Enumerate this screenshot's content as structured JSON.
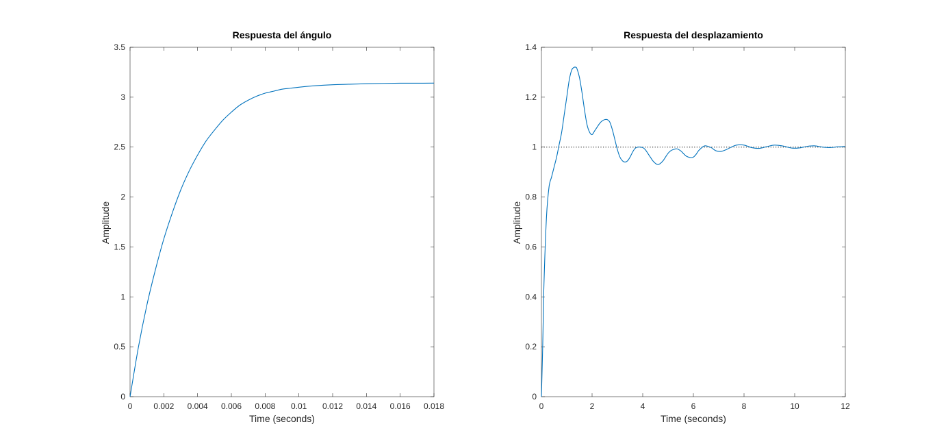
{
  "chart_data": [
    {
      "type": "line",
      "title": "Respuesta del ángulo",
      "xlabel": "Time (seconds)",
      "ylabel": "Amplitude",
      "xlim": [
        0,
        0.018
      ],
      "ylim": [
        0,
        3.5
      ],
      "xticks": [
        "0",
        "0.002",
        "0.004",
        "0.006",
        "0.008",
        "0.01",
        "0.012",
        "0.014",
        "0.016",
        "0.018"
      ],
      "xtick_values": [
        0,
        0.002,
        0.004,
        0.006,
        0.008,
        0.01,
        0.012,
        0.014,
        0.016,
        0.018
      ],
      "yticks": [
        "0",
        "0.5",
        "1",
        "1.5",
        "2",
        "2.5",
        "3",
        "3.5"
      ],
      "ytick_values": [
        0,
        0.5,
        1,
        1.5,
        2,
        2.5,
        3,
        3.5
      ],
      "grid": false,
      "reference_line": null,
      "series": [
        {
          "color": "#0072BD",
          "x": [
            0,
            0.0005,
            0.001,
            0.0015,
            0.002,
            0.0025,
            0.003,
            0.0035,
            0.004,
            0.0045,
            0.005,
            0.0055,
            0.006,
            0.0065,
            0.007,
            0.0075,
            0.008,
            0.0085,
            0.009,
            0.0095,
            0.01,
            0.011,
            0.012,
            0.013,
            0.014,
            0.015,
            0.016,
            0.017,
            0.018
          ],
          "y": [
            0,
            0.5,
            0.92,
            1.27,
            1.58,
            1.84,
            2.07,
            2.26,
            2.42,
            2.56,
            2.67,
            2.77,
            2.85,
            2.92,
            2.97,
            3.01,
            3.04,
            3.06,
            3.08,
            3.09,
            3.1,
            3.115,
            3.125,
            3.13,
            3.135,
            3.138,
            3.14,
            3.14,
            3.141
          ]
        }
      ]
    },
    {
      "type": "line",
      "title": "Respuesta del desplazamiento",
      "xlabel": "Time (seconds)",
      "ylabel": "Amplitude",
      "xlim": [
        0,
        12
      ],
      "ylim": [
        0,
        1.4
      ],
      "xticks": [
        "0",
        "2",
        "4",
        "6",
        "8",
        "10",
        "12"
      ],
      "xtick_values": [
        0,
        2,
        4,
        6,
        8,
        10,
        12
      ],
      "yticks": [
        "0",
        "0.2",
        "0.4",
        "0.6",
        "0.8",
        "1",
        "1.2",
        "1.4"
      ],
      "ytick_values": [
        0,
        0.2,
        0.4,
        0.6,
        0.8,
        1,
        1.2,
        1.4
      ],
      "grid": false,
      "reference_line": {
        "y": 1,
        "style": "dotted",
        "color": "#000000"
      },
      "series": [
        {
          "color": "#0072BD",
          "x": [
            0,
            0.05,
            0.1,
            0.2,
            0.3,
            0.4,
            0.5,
            0.6,
            0.7,
            0.8,
            0.9,
            1.0,
            1.1,
            1.2,
            1.3,
            1.35,
            1.4,
            1.5,
            1.6,
            1.7,
            1.8,
            1.9,
            2.0,
            2.1,
            2.2,
            2.3,
            2.4,
            2.5,
            2.6,
            2.7,
            2.8,
            2.9,
            3.0,
            3.1,
            3.2,
            3.3,
            3.4,
            3.5,
            3.6,
            3.7,
            3.8,
            3.9,
            4.0,
            4.1,
            4.2,
            4.3,
            4.4,
            4.5,
            4.6,
            4.7,
            4.8,
            4.9,
            5.0,
            5.1,
            5.2,
            5.35,
            5.5,
            5.6,
            5.7,
            5.8,
            5.9,
            6.0,
            6.1,
            6.2,
            6.3,
            6.4,
            6.5,
            6.7,
            6.9,
            7.1,
            7.3,
            7.5,
            7.7,
            8.0,
            8.3,
            8.6,
            8.9,
            9.2,
            9.5,
            9.9,
            10.2,
            10.5,
            10.8,
            11.1,
            11.4,
            11.7,
            12.0
          ],
          "y": [
            0,
            0.2,
            0.45,
            0.72,
            0.84,
            0.88,
            0.92,
            0.96,
            1.01,
            1.06,
            1.13,
            1.2,
            1.27,
            1.31,
            1.32,
            1.32,
            1.315,
            1.28,
            1.22,
            1.15,
            1.09,
            1.06,
            1.05,
            1.065,
            1.08,
            1.095,
            1.105,
            1.11,
            1.11,
            1.1,
            1.07,
            1.03,
            0.99,
            0.96,
            0.945,
            0.94,
            0.945,
            0.96,
            0.98,
            0.995,
            1.0,
            1.0,
            0.998,
            0.99,
            0.975,
            0.96,
            0.945,
            0.935,
            0.93,
            0.935,
            0.945,
            0.96,
            0.975,
            0.985,
            0.99,
            0.993,
            0.985,
            0.975,
            0.965,
            0.96,
            0.958,
            0.96,
            0.97,
            0.985,
            0.995,
            1.003,
            1.005,
            0.998,
            0.985,
            0.983,
            0.99,
            1.0,
            1.008,
            1.008,
            0.998,
            0.995,
            1.002,
            1.008,
            1.005,
            0.996,
            0.997,
            1.003,
            1.005,
            1.0,
            0.998,
            1.001,
            1.002
          ]
        }
      ]
    }
  ]
}
